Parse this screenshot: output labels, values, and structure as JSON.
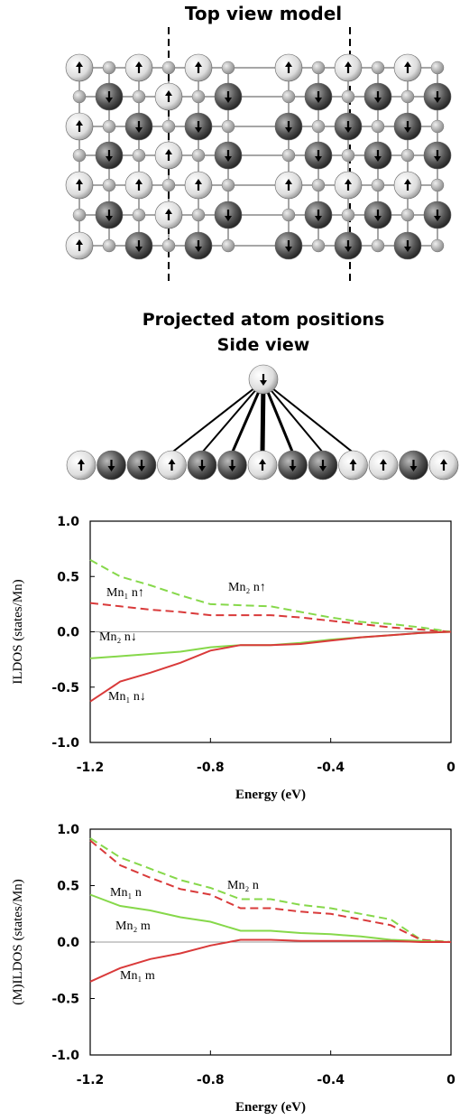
{
  "diagram": {
    "top_title": "Top view model",
    "side_title": "Projected atom positions",
    "side_subtitle": "Side view"
  },
  "chart_data": [
    {
      "type": "line",
      "xlabel": "Energy (eV)",
      "ylabel": "ILDOS (states/Mn)",
      "x": [
        -1.2,
        -1.1,
        -1.0,
        -0.9,
        -0.8,
        -0.7,
        -0.6,
        -0.5,
        -0.4,
        -0.3,
        -0.2,
        -0.1,
        0
      ],
      "xlim": [
        -1.2,
        0
      ],
      "xticks": [
        -1.2,
        -0.8,
        -0.4,
        0
      ],
      "ylim": [
        -1,
        1
      ],
      "yticks": [
        {
          "value": 1,
          "label": "1.0"
        },
        0.5,
        {
          "value": 0,
          "label": "0.0"
        },
        -0.5,
        {
          "value": -1,
          "label": "-1.0"
        }
      ],
      "reference_line": 0,
      "series": [
        {
          "name": "Mn₁ n↑",
          "color": "#d93a3a",
          "dashed": true,
          "values": [
            0.26,
            0.23,
            0.2,
            0.18,
            0.15,
            0.15,
            0.15,
            0.13,
            0.1,
            0.07,
            0.04,
            0.02,
            0
          ]
        },
        {
          "name": "Mn₂ n↑",
          "color": "#86d84a",
          "dashed": true,
          "values": [
            0.65,
            0.5,
            0.42,
            0.33,
            0.25,
            0.24,
            0.23,
            0.18,
            0.13,
            0.09,
            0.07,
            0.04,
            0
          ]
        },
        {
          "name": "Mn₂ n↓",
          "color": "#86d84a",
          "dashed": false,
          "values": [
            -0.24,
            -0.22,
            -0.2,
            -0.18,
            -0.14,
            -0.12,
            -0.12,
            -0.1,
            -0.07,
            -0.05,
            -0.03,
            -0.01,
            0
          ]
        },
        {
          "name": "Mn₁ n↓",
          "color": "#d93a3a",
          "dashed": false,
          "values": [
            -0.63,
            -0.45,
            -0.37,
            -0.28,
            -0.17,
            -0.12,
            -0.12,
            -0.11,
            -0.08,
            -0.05,
            -0.03,
            -0.01,
            0
          ]
        }
      ]
    },
    {
      "type": "line",
      "xlabel": "Energy (eV)",
      "ylabel": "(M)ILDOS (states/Mn)",
      "x": [
        -1.2,
        -1.1,
        -1.0,
        -0.9,
        -0.8,
        -0.7,
        -0.6,
        -0.5,
        -0.4,
        -0.3,
        -0.2,
        -0.1,
        0
      ],
      "xlim": [
        -1.2,
        0
      ],
      "xticks": [
        -1.2,
        -0.8,
        -0.4,
        0
      ],
      "ylim": [
        -1,
        1
      ],
      "yticks": [
        {
          "value": 1,
          "label": "1.0"
        },
        0.5,
        {
          "value": 0,
          "label": "0.0"
        },
        -0.5,
        {
          "value": -1,
          "label": "-1.0"
        }
      ],
      "reference_line": 0,
      "series": [
        {
          "name": "Mn₂ n",
          "color": "#86d84a",
          "dashed": true,
          "values": [
            0.92,
            0.75,
            0.65,
            0.55,
            0.48,
            0.38,
            0.38,
            0.33,
            0.3,
            0.25,
            0.2,
            0.02,
            0
          ]
        },
        {
          "name": "Mn₁ n",
          "color": "#d93a3a",
          "dashed": true,
          "values": [
            0.9,
            0.68,
            0.57,
            0.47,
            0.42,
            0.3,
            0.3,
            0.27,
            0.25,
            0.2,
            0.15,
            0.02,
            0
          ]
        },
        {
          "name": "Mn₂ m",
          "color": "#86d84a",
          "dashed": false,
          "values": [
            0.42,
            0.32,
            0.28,
            0.22,
            0.18,
            0.1,
            0.1,
            0.08,
            0.07,
            0.05,
            0.02,
            0.01,
            0
          ]
        },
        {
          "name": "Mn₁ m",
          "color": "#d93a3a",
          "dashed": false,
          "values": [
            -0.35,
            -0.23,
            -0.15,
            -0.1,
            -0.03,
            0.02,
            0.02,
            0.01,
            0.01,
            0.01,
            0.01,
            0,
            0
          ]
        }
      ]
    }
  ]
}
